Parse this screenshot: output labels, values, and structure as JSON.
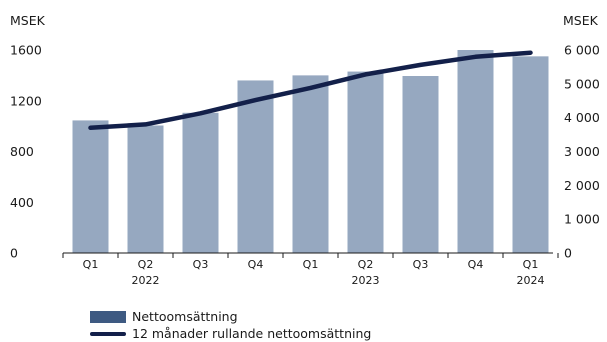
{
  "chart_data": {
    "type": "bar",
    "left_unit": "MSEK",
    "right_unit": "MSEK",
    "left_ticks": [
      "0",
      "400",
      "800",
      "1200",
      "1600"
    ],
    "right_ticks": [
      "0",
      "1 000",
      "2 000",
      "3 000",
      "4 000",
      "5 000",
      "6 000"
    ],
    "ylim_left": [
      0,
      1600
    ],
    "ylim_right": [
      0,
      6000
    ],
    "categories": [
      "Q1",
      "Q2",
      "Q3",
      "Q4",
      "Q1",
      "Q2",
      "Q3",
      "Q4",
      "Q1"
    ],
    "year_labels": [
      {
        "label": "2022",
        "category_index": 1
      },
      {
        "label": "2023",
        "category_index": 5
      },
      {
        "label": "2024",
        "category_index": 8
      }
    ],
    "series": [
      {
        "name": "Nettoomsättning",
        "type": "bar",
        "axis": "left",
        "values": [
          1045,
          1005,
          1105,
          1360,
          1400,
          1430,
          1395,
          1600,
          1550
        ]
      },
      {
        "name": "12 månader rullande nettoomsättning",
        "type": "line",
        "axis": "right",
        "values": [
          3700,
          3800,
          4130,
          4520,
          4880,
          5280,
          5560,
          5800,
          5920
        ]
      }
    ],
    "colors": {
      "bar": "#96a8c0",
      "line": "#13204a",
      "legend_bar": "#3e5a82"
    }
  }
}
